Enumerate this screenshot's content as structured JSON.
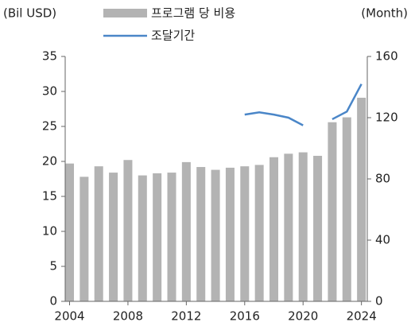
{
  "chart_data": {
    "type": "bar",
    "y_label": "(Bil USD)",
    "y2_label": "(Month)",
    "x": [
      2004,
      2005,
      2006,
      2007,
      2008,
      2009,
      2010,
      2011,
      2012,
      2013,
      2014,
      2015,
      2016,
      2017,
      2018,
      2019,
      2020,
      2021,
      2022,
      2023,
      2024
    ],
    "xlim": [
      2003.7,
      2024.4
    ],
    "xticks": [
      2004,
      2008,
      2012,
      2016,
      2020,
      2024
    ],
    "ylim": [
      0,
      35
    ],
    "yticks": [
      0,
      5,
      10,
      15,
      20,
      25,
      30,
      35
    ],
    "y2lim": [
      0,
      160
    ],
    "y2ticks": [
      0,
      40,
      80,
      120,
      160
    ],
    "series": [
      {
        "name": "프로그램 당 비용",
        "type": "bar",
        "color": "#b3b3b3",
        "values": [
          19.7,
          17.8,
          19.3,
          18.4,
          20.2,
          18.0,
          18.3,
          18.4,
          19.9,
          19.2,
          18.8,
          19.1,
          19.3,
          19.5,
          20.6,
          21.1,
          21.3,
          20.8,
          25.6,
          26.3,
          29.1
        ]
      },
      {
        "name": "조달기간",
        "type": "line",
        "axis": "y2",
        "color": "#4a86c8",
        "values": [
          null,
          null,
          null,
          null,
          null,
          null,
          null,
          null,
          null,
          null,
          null,
          null,
          122,
          123.5,
          122,
          120,
          115,
          null,
          119,
          124,
          142
        ]
      }
    ]
  }
}
